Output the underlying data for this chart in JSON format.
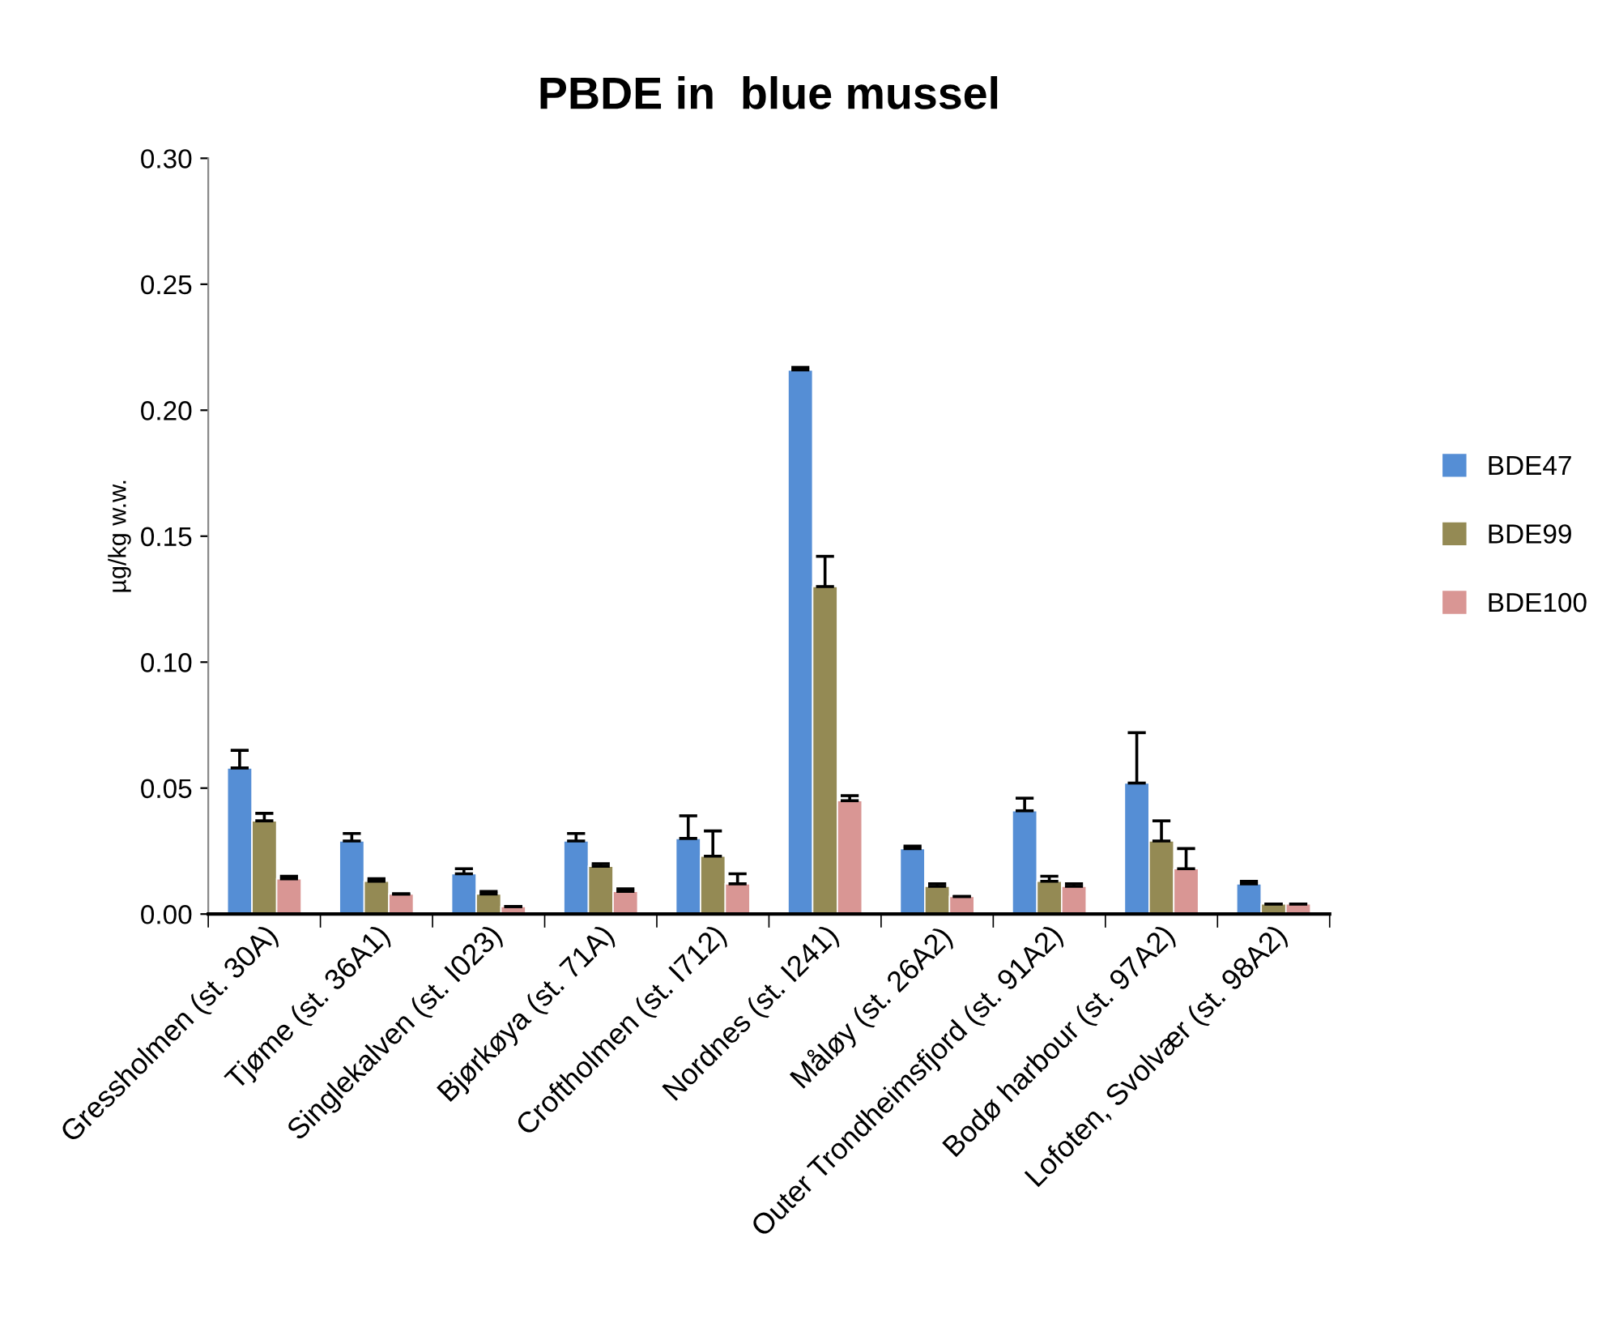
{
  "chart_data": {
    "type": "bar",
    "title": "PBDE in  blue mussel",
    "ylabel": "µg/kg w.w.",
    "categories": [
      "Gressholmen (st. 30A)",
      "Tjøme (st. 36A1)",
      "Singlekalven (st. I023)",
      "Bjørkøya (st. 71A)",
      "Croftholmen (st. I712)",
      "Nordnes (st. I241)",
      "Måløy (st. 26A2)",
      "Outer Trondheimsfjord (st. 91A2)",
      "Bodø harbour (st. 97A2)",
      "Lofoten, Svolvær (st. 98A2)"
    ],
    "series": [
      {
        "name": "BDE47",
        "color": "#558ed5",
        "values": [
          0.058,
          0.029,
          0.016,
          0.029,
          0.03,
          0.216,
          0.026,
          0.041,
          0.052,
          0.012
        ],
        "errors": [
          [
            0.058,
            0.065
          ],
          [
            0.029,
            0.032
          ],
          [
            0.016,
            0.018
          ],
          [
            0.029,
            0.032
          ],
          [
            0.03,
            0.039
          ],
          [
            0.216,
            0.217
          ],
          [
            0.026,
            0.027
          ],
          [
            0.041,
            0.046
          ],
          [
            0.052,
            0.072
          ],
          [
            0.012,
            0.013
          ]
        ]
      },
      {
        "name": "BDE99",
        "color": "#948a54",
        "values": [
          0.037,
          0.013,
          0.008,
          0.019,
          0.023,
          0.13,
          0.011,
          0.013,
          0.029,
          0.004
        ],
        "errors": [
          [
            0.037,
            0.04
          ],
          [
            0.013,
            0.014
          ],
          [
            0.008,
            0.009
          ],
          [
            0.019,
            0.02
          ],
          [
            0.023,
            0.033
          ],
          [
            0.13,
            0.142
          ],
          [
            0.011,
            0.012
          ],
          [
            0.013,
            0.015
          ],
          [
            0.029,
            0.037
          ],
          [
            0.004,
            0.004
          ]
        ]
      },
      {
        "name": "BDE100",
        "color": "#d99694",
        "values": [
          0.014,
          0.008,
          0.003,
          0.009,
          0.012,
          0.045,
          0.007,
          0.011,
          0.018,
          0.004
        ],
        "errors": [
          [
            0.014,
            0.015
          ],
          [
            0.008,
            0.008
          ],
          [
            0.003,
            0.003
          ],
          [
            0.009,
            0.01
          ],
          [
            0.012,
            0.016
          ],
          [
            0.045,
            0.047
          ],
          [
            0.007,
            0.007
          ],
          [
            0.011,
            0.012
          ],
          [
            0.018,
            0.026
          ],
          [
            0.004,
            0.004
          ]
        ]
      }
    ],
    "ylim": [
      0,
      0.3
    ],
    "yticks": [
      {
        "value": 0,
        "label": "0.00"
      },
      {
        "value": 0.05,
        "label": "0.05"
      },
      {
        "value": 0.1,
        "label": "0.10"
      },
      {
        "value": 0.15,
        "label": "0.15"
      },
      {
        "value": 0.2,
        "label": "0.20"
      },
      {
        "value": 0.25,
        "label": "0.25"
      },
      {
        "value": 0.3,
        "label": "0.30"
      }
    ],
    "grid": false,
    "legend": "right"
  }
}
